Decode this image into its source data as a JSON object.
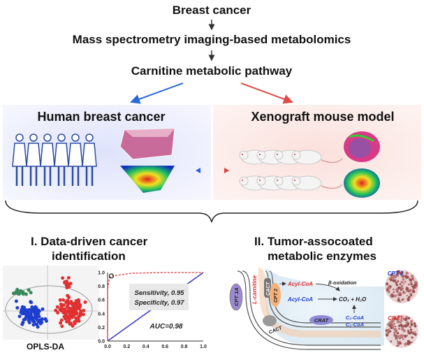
{
  "flow": {
    "step1": "Breast cancer",
    "step2": "Mass spectrometry imaging-based metabolomics",
    "step3": "Carnitine metabolic pathway"
  },
  "panels": {
    "left_title": "Human breast cancer",
    "right_title": "Xenograft mouse model"
  },
  "section1": {
    "title_line1": "I. Data-driven cancer",
    "title_line2": "identification",
    "scatter_label": "OPLS-DA",
    "sensitivity": "Sensitivity, 0.95",
    "specificity": "Specificity, 0.97",
    "auc": "AUC=0.98",
    "x_ticks": [
      "0.0",
      "0.2",
      "0.4",
      "0.6",
      "0.8",
      "1.0"
    ],
    "y_ticks": [
      "0.0",
      "0.2",
      "0.4",
      "0.6",
      "0.8",
      "1.0"
    ],
    "roc_points": [
      [
        0,
        0
      ],
      [
        0,
        0.75
      ],
      [
        0.01,
        0.85
      ],
      [
        0.02,
        0.92
      ],
      [
        0.04,
        0.95
      ],
      [
        0.1,
        0.96
      ],
      [
        0.25,
        0.99
      ],
      [
        0.6,
        1.0
      ],
      [
        1,
        1
      ]
    ]
  },
  "section2": {
    "title_line1": "II. Tumor-assocoated",
    "title_line2": "metabolic enzymes",
    "cpt1a": "CPT 1A",
    "lcarnitine": "L-carnitine",
    "cact_top": "CACT",
    "cpt2": "CPT 2",
    "cact_bottom": "CACT",
    "acyl_coa_red": "Acyl-CoA",
    "beta_ox": "β-oxidation",
    "acyl_coa_blue": "Acyl-CoA",
    "co2_h2o": "CO₂ + H₂O",
    "crat": "CRAT",
    "c2coa": "C₂-CoA",
    "c3coa": "C₃-CoA",
    "ihc_cpt2": "CPT 2",
    "ihc_crat": "CRAT"
  },
  "colors": {
    "blue": "#1f3fd0",
    "red": "#e03030",
    "green": "#3a8a5a"
  }
}
